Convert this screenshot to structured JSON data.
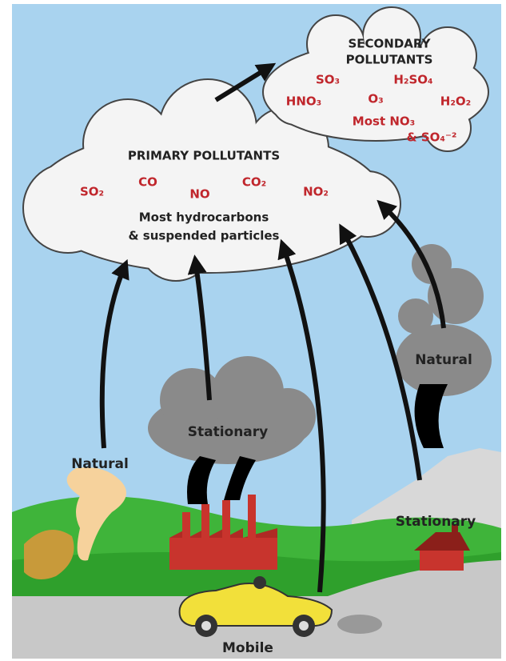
{
  "secondary": {
    "title": [
      "SECONDARY",
      "POLLUTANTS"
    ],
    "pollutants": [
      "SO₃",
      "H₂SO₄",
      "HNO₃",
      "O₃",
      "H₂O₂",
      "Most NO₃",
      "& SO₄⁻²"
    ]
  },
  "primary": {
    "title": "PRIMARY POLLUTANTS",
    "pollutants": [
      "SO₂",
      "CO",
      "NO",
      "CO₂",
      "NO₂"
    ],
    "note": [
      "Most hydrocarbons",
      "& suspended particles"
    ]
  },
  "sources": [
    "Natural",
    "Stationary",
    "Natural",
    "Stationary",
    "Mobile"
  ]
}
